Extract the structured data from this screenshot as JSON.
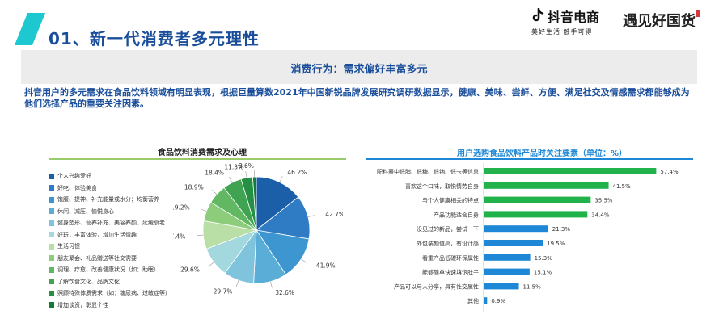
{
  "header": {
    "title": "01、新一代消费者多元理性",
    "brand_name": "抖音电商",
    "brand_slogan": "美好生活  触手可得",
    "brand2_name": "遇见好国货"
  },
  "banner": {
    "text": "消费行为：需求偏好丰富多元"
  },
  "description": "抖音用户的多元需求在食品饮料领域有明显表现，根据巨量算数2021年中国新锐品牌发展研究调研数据显示，健康、美味、尝鲜、方便、满足社交及情感需求都能够成为他们选择产品的重要关注因素。",
  "colors": {
    "accent": "#1ec8d0",
    "title_blue": "#1a4e9a",
    "bar_green": "#22b24c",
    "bar_blue": "#1e88d6",
    "pie_palette": [
      "#1a5fa8",
      "#2f7cc4",
      "#3d96cf",
      "#5aadd6",
      "#7fc4dc",
      "#a3d8de",
      "#b9dfa6",
      "#8ccc7a",
      "#62b763",
      "#40a352",
      "#258f43",
      "#167a37",
      "#0c5a2a"
    ]
  },
  "chart_data": [
    {
      "type": "pie",
      "title": "食品饮料消费需求及心理",
      "categories": [
        "个人兴趣爱好",
        "好吃、体验美食",
        "饱腹、提神、补充能量或水分；均衡营养",
        "休闲、减压、愉悦身心",
        "健身塑形、营养补充、美容养颜、延缓衰老",
        "好玩，丰富体验，增加生活情趣",
        "生活习惯",
        "朋友聚会、礼品赠送等社交需要",
        "调理、疗愈、改善健康状况（如：助眠）",
        "了解饮食文化、品牌文化",
        "照顾特殊体质需求（如：糖尿病、过敏症等）",
        "增加谈资，彰显个性"
      ],
      "values": [
        46.2,
        42.7,
        41.9,
        32.6,
        29.7,
        29.6,
        27.4,
        19.2,
        18.9,
        18.4,
        11.3,
        3.6
      ],
      "labels": [
        "46.2%",
        "42.7%",
        "41.9%",
        "32.6%",
        "29.7%",
        "29.6%",
        "27.4%",
        "19.2%",
        "18.9%",
        "18.4%",
        "11.3%",
        "3.6%"
      ]
    },
    {
      "type": "bar",
      "orientation": "horizontal",
      "title": "用户选购食品饮料产品时关注要素（单位：%）",
      "categories": [
        "配料表中低脂、低糖、低钠、低卡等信息",
        "喜欢这个口味，取悦情劳自身",
        "与个人健康相关的特点",
        "产品功能适合自身",
        "没见过的新品，尝试一下",
        "外包装颜值高，有设计感",
        "看重产品低碳环保属性",
        "能够简单快速填饱肚子",
        "产品可以与人分享，具有社交属性",
        "其他"
      ],
      "values": [
        57.4,
        41.5,
        35.5,
        34.4,
        21.3,
        19.5,
        15.3,
        15.1,
        11.5,
        0.9
      ],
      "labels": [
        "57.4%",
        "41.5%",
        "35.5%",
        "34.4%",
        "21.3%",
        "19.5%",
        "15.3%",
        "15.1%",
        "11.5%",
        "0.9%"
      ],
      "xlim": [
        0,
        60
      ]
    }
  ]
}
